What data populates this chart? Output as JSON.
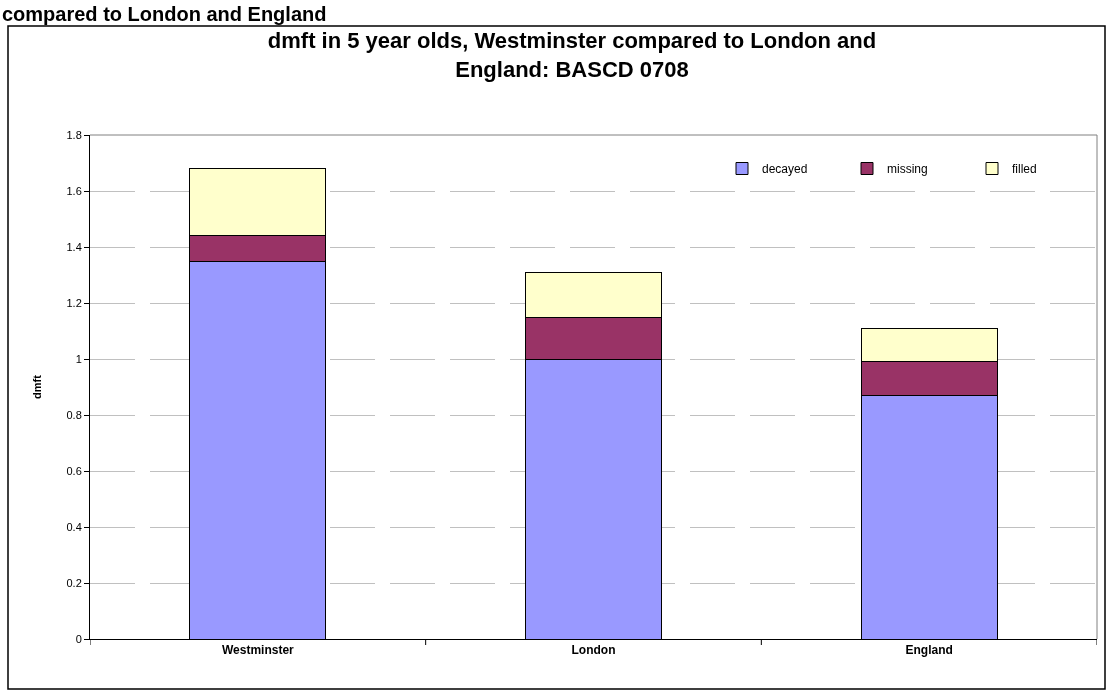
{
  "chart_data": {
    "type": "bar",
    "title": "dmft in 5 year olds, Westminster compared to London and England: BASCD 0708",
    "ylabel": "dmft",
    "annotations": [
      "compared to London and England"
    ],
    "categories": [
      "Westminster",
      "London",
      "England"
    ],
    "series": [
      {
        "name": "decayed",
        "color": "#9999ff",
        "values": [
          1.35,
          1.0,
          0.87
        ]
      },
      {
        "name": "missing",
        "color": "#993366",
        "values": [
          0.09,
          0.15,
          0.12
        ]
      },
      {
        "name": "filled",
        "color": "#ffffcc",
        "values": [
          0.24,
          0.16,
          0.12
        ]
      }
    ],
    "stacked": true,
    "ylim": [
      0,
      1.8
    ],
    "yticks": [
      0,
      0.2,
      0.4,
      0.6,
      0.8,
      1,
      1.2,
      1.4,
      1.6,
      1.8
    ],
    "grid": "y",
    "legend": "top right"
  }
}
